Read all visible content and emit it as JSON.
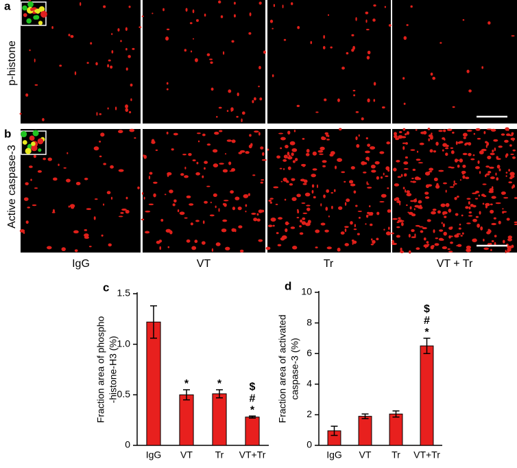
{
  "figure": {
    "panel_labels": [
      "a",
      "b"
    ],
    "row_labels": [
      "p-histone",
      "Active caspase-3"
    ],
    "column_labels": [
      "IgG",
      "VT",
      "Tr",
      "VT + Tr"
    ]
  },
  "chart_data": [
    {
      "type": "bar",
      "panel_label": "c",
      "y_label": [
        "Fraction area of phospho",
        "-histone-H3 (%)"
      ],
      "categories": [
        "IgG",
        "VT",
        "Tr",
        "VT+Tr"
      ],
      "values": [
        1.22,
        0.5,
        0.51,
        0.28
      ],
      "errors": [
        0.16,
        0.05,
        0.04,
        0.01
      ],
      "annotations": [
        [],
        [
          "*"
        ],
        [
          "*"
        ],
        [
          "$",
          "#",
          "*"
        ]
      ],
      "color": "#e8201e",
      "ylim": [
        0,
        1.5
      ],
      "yticks": [
        0,
        0.5,
        {
          "value": 1.0,
          "label": "1.0"
        },
        1.5
      ]
    },
    {
      "type": "bar",
      "panel_label": "d",
      "y_label": [
        "Fraction area of activated",
        "caspase-3 (%)"
      ],
      "categories": [
        "IgG",
        "VT",
        "Tr",
        "VT+Tr"
      ],
      "values": [
        0.95,
        1.9,
        2.05,
        6.5
      ],
      "errors": [
        0.3,
        0.15,
        0.2,
        0.5
      ],
      "annotations": [
        [],
        [],
        [],
        [
          "$",
          "#",
          "*"
        ]
      ],
      "color": "#e8201e",
      "ylim": [
        0,
        10
      ],
      "yticks": [
        0,
        2,
        4,
        6,
        8,
        10
      ]
    }
  ]
}
